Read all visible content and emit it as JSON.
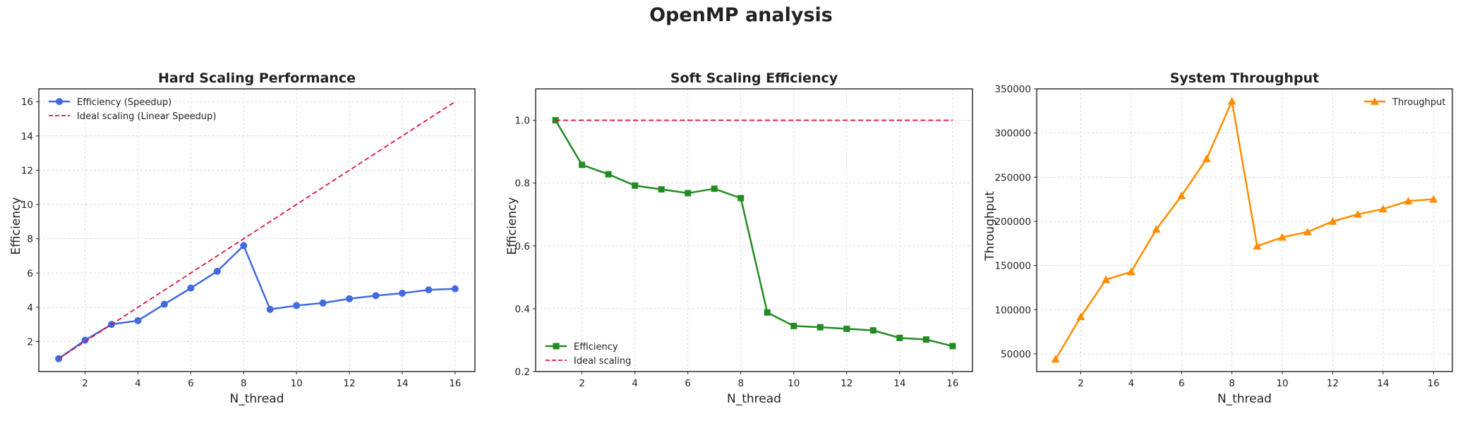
{
  "suptitle": "OpenMP analysis",
  "chart_data": [
    {
      "type": "line",
      "title": "Hard Scaling Performance",
      "xlabel": "N_thread",
      "ylabel": "Efficiency",
      "xlim": [
        0.25,
        16.75
      ],
      "ylim": [
        0.25,
        16.75
      ],
      "xticks": [
        2,
        4,
        6,
        8,
        10,
        12,
        14,
        16
      ],
      "yticks": [
        2,
        4,
        6,
        8,
        10,
        12,
        14,
        16
      ],
      "grid": true,
      "legend": "upper-left",
      "series": [
        {
          "name": "Efficiency (Speedup)",
          "color": "#4169e1",
          "marker": "circle",
          "dash": false,
          "x": [
            1,
            2,
            3,
            4,
            5,
            6,
            7,
            8,
            9,
            10,
            11,
            12,
            13,
            14,
            15,
            16
          ],
          "y": [
            1.0,
            2.08,
            3.0,
            3.22,
            4.18,
            5.12,
            6.1,
            7.6,
            3.88,
            4.1,
            4.25,
            4.5,
            4.68,
            4.82,
            5.02,
            5.08
          ]
        },
        {
          "name": "Ideal scaling (Linear Speedup)",
          "color": "#dc143c",
          "marker": "none",
          "dash": true,
          "x": [
            1,
            16
          ],
          "y": [
            1,
            16
          ]
        }
      ]
    },
    {
      "type": "line",
      "title": "Soft Scaling Efficiency",
      "xlabel": "N_thread",
      "ylabel": "Efficiency",
      "xlim": [
        0.25,
        16.75
      ],
      "ylim": [
        0.2,
        1.1
      ],
      "xticks": [
        2,
        4,
        6,
        8,
        10,
        12,
        14,
        16
      ],
      "yticks": [
        0.2,
        0.4,
        0.6,
        0.8,
        1.0
      ],
      "grid": true,
      "legend": "lower-left",
      "series": [
        {
          "name": "Efficiency",
          "color": "#228b22",
          "marker": "square",
          "dash": false,
          "x": [
            1,
            2,
            3,
            4,
            5,
            6,
            7,
            8,
            9,
            10,
            11,
            12,
            13,
            14,
            15,
            16
          ],
          "y": [
            1.0,
            0.858,
            0.828,
            0.792,
            0.78,
            0.768,
            0.782,
            0.752,
            0.388,
            0.345,
            0.341,
            0.336,
            0.331,
            0.307,
            0.302,
            0.281
          ]
        },
        {
          "name": "Ideal scaling",
          "color": "#dc143c",
          "marker": "none",
          "dash": true,
          "x": [
            1,
            16
          ],
          "y": [
            1.0,
            1.0
          ]
        }
      ]
    },
    {
      "type": "line",
      "title": "System Throughput",
      "xlabel": "N_thread",
      "ylabel": "Throughput",
      "xlim": [
        0.25,
        16.75
      ],
      "ylim": [
        30000,
        350000
      ],
      "xticks": [
        2,
        4,
        6,
        8,
        10,
        12,
        14,
        16
      ],
      "yticks": [
        50000,
        100000,
        150000,
        200000,
        250000,
        300000,
        350000
      ],
      "grid": true,
      "legend": "upper-right",
      "series": [
        {
          "name": "Throughput",
          "color": "#ff8c00",
          "marker": "triangle",
          "dash": false,
          "x": [
            1,
            2,
            3,
            4,
            5,
            6,
            7,
            8,
            9,
            10,
            11,
            12,
            13,
            14,
            15,
            16
          ],
          "y": [
            44000,
            92000,
            134000,
            143000,
            191000,
            229000,
            271000,
            336000,
            172000,
            182000,
            188000,
            200000,
            208000,
            214000,
            223000,
            225000
          ]
        }
      ]
    }
  ]
}
